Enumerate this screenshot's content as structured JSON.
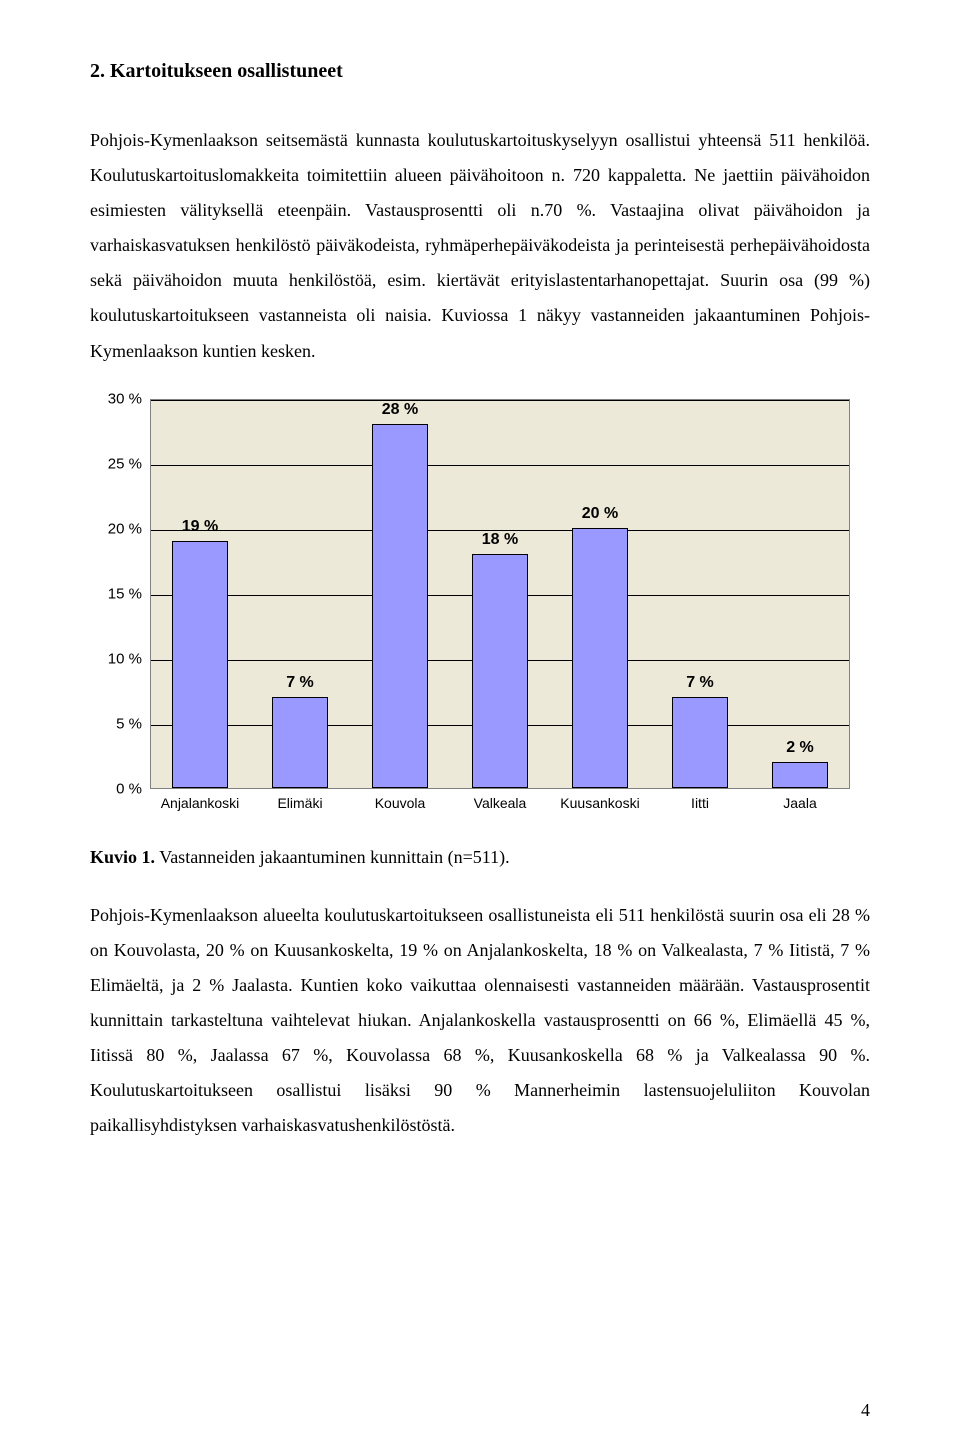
{
  "heading": "2. Kartoitukseen osallistuneet",
  "paragraph1": "Pohjois-Kymenlaakson seitsemästä kunnasta koulutuskartoituskyselyyn osallistui yhteensä 511 henkilöä. Koulutuskartoituslomakkeita toimitettiin alueen päivähoitoon n. 720 kappaletta. Ne jaettiin päivähoidon esimiesten välityksellä eteenpäin. Vastausprosentti oli n.70 %. Vastaajina olivat päivähoidon ja varhaiskasvatuksen henkilöstö päiväkodeista, ryhmäperhepäiväkodeista ja perinteisestä perhepäivähoidosta sekä päivähoidon muuta henkilöstöä, esim. kiertävät erityislastentarhanopettajat. Suurin osa (99 %) koulutuskartoitukseen vastanneista oli naisia. Kuviossa 1 näkyy vastanneiden jakaantuminen Pohjois-Kymenlaakson kuntien kesken.",
  "chart": {
    "background_color": "#ece9d8",
    "grid_color": "#000000",
    "bar_color": "#9999ff",
    "bar_border": "#000000",
    "ymax": 30,
    "ytick_step": 5,
    "y_ticks": [
      {
        "v": 0,
        "label": "0 %"
      },
      {
        "v": 5,
        "label": "5 %"
      },
      {
        "v": 10,
        "label": "10 %"
      },
      {
        "v": 15,
        "label": "15 %"
      },
      {
        "v": 20,
        "label": "20 %"
      },
      {
        "v": 25,
        "label": "25 %"
      },
      {
        "v": 30,
        "label": "30 %"
      }
    ],
    "bars": [
      {
        "label": "Anjalankoski",
        "value": 19,
        "value_label": "19 %"
      },
      {
        "label": "Elimäki",
        "value": 7,
        "value_label": "7 %"
      },
      {
        "label": "Kouvola",
        "value": 28,
        "value_label": "28 %"
      },
      {
        "label": "Valkeala",
        "value": 18,
        "value_label": "18 %"
      },
      {
        "label": "Kuusankoski",
        "value": 20,
        "value_label": "20 %"
      },
      {
        "label": "Iitti",
        "value": 7,
        "value_label": "7 %"
      },
      {
        "label": "Jaala",
        "value": 2,
        "value_label": "2 %"
      }
    ]
  },
  "caption_bold": "Kuvio 1.",
  "caption_rest": " Vastanneiden jakaantuminen kunnittain (n=511).",
  "paragraph2": "Pohjois-Kymenlaakson alueelta koulutuskartoitukseen osallistuneista eli 511 henkilöstä suurin osa eli 28 % on Kouvolasta, 20 % on Kuusankoskelta, 19 % on Anjalankoskelta, 18 % on Valkealasta, 7 % Iitistä, 7 % Elimäeltä, ja 2 % Jaalasta. Kuntien koko vaikuttaa olennaisesti vastanneiden määrään. Vastausprosentit kunnittain tarkasteltuna vaihtelevat hiukan. Anjalankoskella vastausprosentti on 66 %, Elimäellä 45 %, Iitissä 80 %, Jaalassa 67 %, Kouvolassa 68 %, Kuusankoskella 68 % ja Valkealassa 90 %. Koulutuskartoitukseen osallistui lisäksi 90 % Mannerheimin lastensuojeluliiton Kouvolan paikallisyhdistyksen varhaiskasvatushenkilöstöstä.",
  "page_number": "4"
}
